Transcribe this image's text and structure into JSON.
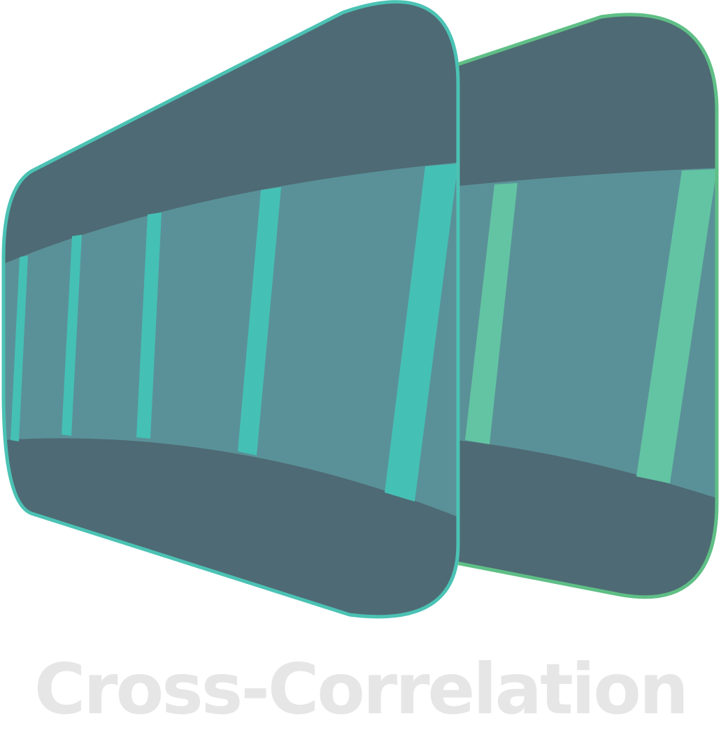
{
  "logo": {
    "icon": "cross-correlation-logo-mark",
    "wordmark": "Cross-Correlation"
  },
  "colors": {
    "back_outline": "#5fbf86",
    "back_stripe": "#63c4a3",
    "front_outline": "#4bc2b4",
    "front_stripe": "#45c0b5",
    "dark_panel": "#4e6a74",
    "mid_panel": "#5a9198",
    "wordmark": "#e6e6e6"
  }
}
